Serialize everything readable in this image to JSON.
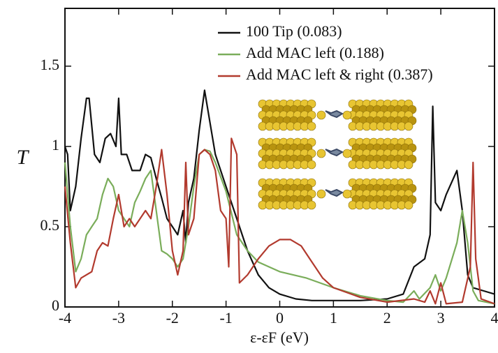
{
  "chart_data": {
    "type": "line",
    "x_label": "ε-εF (eV)",
    "y_label": "T",
    "xlim": [
      -4,
      4
    ],
    "ylim": [
      0,
      1.86
    ],
    "xticks": [
      -4,
      -3,
      -2,
      -1,
      0,
      1,
      2,
      3,
      4
    ],
    "yticks": [
      0,
      0.5,
      1,
      1.5
    ],
    "legend": "upper right",
    "series": [
      {
        "name": "100 Tip (0.083)",
        "color": "#111111",
        "x": [
          -4,
          -3.95,
          -3.9,
          -3.8,
          -3.7,
          -3.6,
          -3.55,
          -3.45,
          -3.35,
          -3.25,
          -3.15,
          -3.05,
          -3.0,
          -2.95,
          -2.85,
          -2.75,
          -2.6,
          -2.5,
          -2.4,
          -2.3,
          -2.2,
          -2.1,
          -2.0,
          -1.9,
          -1.8,
          -1.75,
          -1.7,
          -1.6,
          -1.5,
          -1.4,
          -1.3,
          -1.2,
          -1.0,
          -0.8,
          -0.6,
          -0.4,
          -0.2,
          0,
          0.3,
          0.6,
          1,
          1.5,
          2,
          2.3,
          2.5,
          2.7,
          2.8,
          2.85,
          2.9,
          3.0,
          3.1,
          3.3,
          3.4,
          3.5,
          3.6,
          3.8,
          4
        ],
        "values": [
          1.0,
          0.95,
          0.6,
          0.75,
          1.05,
          1.3,
          1.3,
          0.95,
          0.9,
          1.05,
          1.08,
          1.0,
          1.3,
          0.95,
          0.95,
          0.85,
          0.85,
          0.95,
          0.93,
          0.8,
          0.68,
          0.55,
          0.5,
          0.45,
          0.6,
          0.4,
          0.65,
          0.8,
          1.1,
          1.35,
          1.15,
          0.95,
          0.75,
          0.55,
          0.35,
          0.2,
          0.12,
          0.08,
          0.05,
          0.04,
          0.04,
          0.04,
          0.05,
          0.08,
          0.25,
          0.3,
          0.45,
          1.25,
          0.65,
          0.6,
          0.7,
          0.85,
          0.6,
          0.2,
          0.12,
          0.1,
          0.08
        ]
      },
      {
        "name": "Add MAC left (0.188)",
        "color": "#7aad5a",
        "x": [
          -4,
          -3.9,
          -3.8,
          -3.7,
          -3.6,
          -3.5,
          -3.4,
          -3.3,
          -3.2,
          -3.1,
          -3.0,
          -2.9,
          -2.8,
          -2.7,
          -2.6,
          -2.5,
          -2.4,
          -2.3,
          -2.2,
          -2.1,
          -2.0,
          -1.9,
          -1.8,
          -1.7,
          -1.6,
          -1.5,
          -1.4,
          -1.3,
          -1.2,
          -1.0,
          -0.8,
          -0.6,
          -0.4,
          -0.2,
          0,
          0.5,
          1,
          1.5,
          2,
          2.3,
          2.5,
          2.6,
          2.8,
          2.9,
          3.0,
          3.1,
          3.3,
          3.4,
          3.5,
          3.6,
          3.7,
          4
        ],
        "values": [
          0.9,
          0.5,
          0.22,
          0.3,
          0.45,
          0.5,
          0.55,
          0.7,
          0.8,
          0.75,
          0.6,
          0.55,
          0.5,
          0.65,
          0.72,
          0.8,
          0.85,
          0.6,
          0.35,
          0.33,
          0.3,
          0.25,
          0.3,
          0.5,
          0.75,
          0.95,
          0.98,
          0.97,
          0.9,
          0.72,
          0.45,
          0.35,
          0.28,
          0.25,
          0.22,
          0.18,
          0.12,
          0.07,
          0.04,
          0.03,
          0.1,
          0.05,
          0.12,
          0.2,
          0.1,
          0.18,
          0.4,
          0.6,
          0.4,
          0.1,
          0.04,
          0.02
        ]
      },
      {
        "name": "Add MAC left & right (0.387)",
        "color": "#b23a2e",
        "x": [
          -4,
          -3.9,
          -3.8,
          -3.7,
          -3.5,
          -3.4,
          -3.3,
          -3.2,
          -3.1,
          -3.0,
          -2.9,
          -2.8,
          -2.7,
          -2.6,
          -2.5,
          -2.4,
          -2.3,
          -2.2,
          -2.1,
          -2.0,
          -1.9,
          -1.8,
          -1.75,
          -1.7,
          -1.6,
          -1.5,
          -1.4,
          -1.3,
          -1.2,
          -1.1,
          -1.0,
          -0.95,
          -0.9,
          -0.8,
          -0.75,
          -0.6,
          -0.4,
          -0.2,
          0,
          0.2,
          0.4,
          0.6,
          0.8,
          1,
          1.5,
          2,
          2.5,
          2.7,
          2.8,
          2.9,
          3.0,
          3.1,
          3.4,
          3.55,
          3.6,
          3.65,
          3.75,
          4
        ],
        "values": [
          0.75,
          0.4,
          0.12,
          0.18,
          0.22,
          0.35,
          0.4,
          0.38,
          0.55,
          0.7,
          0.5,
          0.55,
          0.5,
          0.55,
          0.6,
          0.55,
          0.75,
          0.98,
          0.7,
          0.35,
          0.2,
          0.35,
          0.9,
          0.45,
          0.55,
          0.95,
          0.98,
          0.95,
          0.85,
          0.6,
          0.55,
          0.25,
          1.05,
          0.95,
          0.15,
          0.2,
          0.3,
          0.38,
          0.42,
          0.42,
          0.38,
          0.28,
          0.18,
          0.12,
          0.06,
          0.03,
          0.05,
          0.03,
          0.1,
          0.02,
          0.15,
          0.02,
          0.03,
          0.25,
          0.9,
          0.3,
          0.05,
          0.02
        ]
      }
    ]
  }
}
